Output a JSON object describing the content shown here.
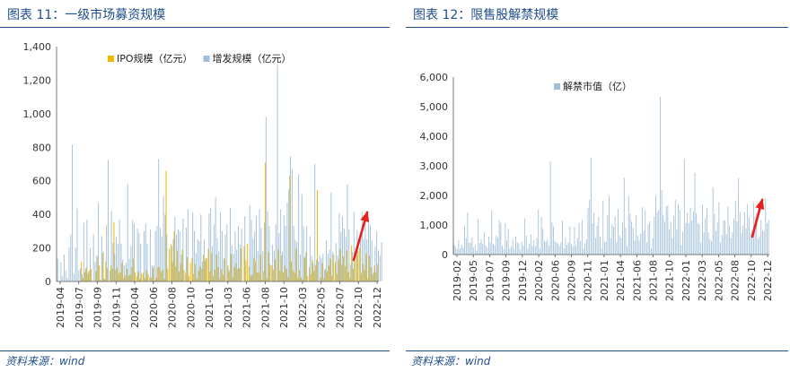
{
  "left": {
    "figure_title": "图表 11：一级市场募资规模",
    "source": "资料来源：wind"
  },
  "right": {
    "figure_title": "图表 12：限售股解禁规模",
    "source": "资料来源：wind"
  },
  "colors": {
    "title": "#1f4e8c",
    "ipo": "#f0b800",
    "additional": "#9fbfd9",
    "unlock": "#9fbfd9",
    "arrow": "#e8201c",
    "axis": "#555555"
  },
  "chart_data": [
    {
      "type": "bar",
      "series": [
        {
          "name": "IPO规模（亿元）",
          "start_week": "2019-04-01",
          "values": [
            0,
            0,
            0,
            0,
            0,
            0,
            0,
            0,
            0,
            0,
            0,
            0,
            0,
            0,
            0,
            120,
            20,
            55,
            85,
            45,
            65,
            75,
            0,
            0,
            60,
            145,
            95,
            5,
            170,
            15,
            120,
            80,
            0,
            95,
            75,
            355,
            70,
            85,
            50,
            55,
            110,
            20,
            35,
            75,
            35,
            40,
            85,
            135,
            55,
            30,
            60,
            15,
            45,
            50,
            20,
            70,
            45,
            25,
            25,
            80,
            5,
            20,
            85,
            85,
            60,
            70,
            15,
            660,
            75,
            195,
            220,
            115,
            300,
            90,
            185,
            60,
            105,
            190,
            70,
            50,
            145,
            35,
            110,
            140,
            45,
            105,
            20,
            65,
            90,
            75,
            160,
            125,
            140,
            195,
            60,
            170,
            35,
            70,
            160,
            85,
            20,
            75,
            40,
            140,
            0,
            95,
            60,
            165,
            25,
            85,
            110,
            75,
            80,
            195,
            0,
            210,
            125,
            225,
            90,
            35,
            40,
            140,
            120,
            55,
            50,
            160,
            10,
            60,
            710,
            20,
            175,
            100,
            95,
            70,
            130,
            5,
            190,
            65,
            155,
            55,
            95,
            75,
            25,
            630,
            120,
            65,
            50,
            195,
            20,
            70,
            25,
            10,
            140,
            175,
            30,
            85,
            45,
            125,
            60,
            95,
            545,
            0,
            25,
            110,
            20,
            75,
            60,
            95,
            135,
            35,
            160,
            115,
            45,
            130,
            195,
            100,
            150,
            90,
            185,
            55,
            20,
            215,
            75,
            125,
            160,
            185,
            200,
            50,
            105,
            70,
            165,
            20,
            155,
            85,
            40,
            95,
            55,
            105
          ]
        },
        {
          "name": "增发规模（亿元）",
          "start_week": "2019-04-01",
          "values": [
            135,
            0,
            115,
            30,
            160,
            65,
            20,
            200,
            280,
            815,
            45,
            200,
            435,
            65,
            80,
            40,
            350,
            75,
            370,
            60,
            200,
            0,
            280,
            115,
            155,
            470,
            10,
            270,
            180,
            15,
            335,
            725,
            65,
            420,
            230,
            165,
            265,
            225,
            370,
            225,
            130,
            95,
            110,
            580,
            135,
            210,
            365,
            345,
            0,
            315,
            290,
            225,
            0,
            300,
            345,
            225,
            0,
            310,
            95,
            95,
            300,
            330,
            730,
            320,
            270,
            510,
            400,
            280,
            0,
            0,
            210,
            250,
            385,
            280,
            310,
            300,
            160,
            375,
            0,
            320,
            430,
            0,
            0,
            410,
            300,
            170,
            250,
            240,
            400,
            120,
            250,
            140,
            0,
            405,
            440,
            210,
            340,
            500,
            260,
            180,
            415,
            300,
            135,
            280,
            340,
            75,
            440,
            215,
            165,
            300,
            190,
            330,
            220,
            315,
            0,
            390,
            0,
            0,
            455,
            370,
            255,
            300,
            390,
            180,
            430,
            320,
            180,
            350,
            980,
            420,
            330,
            0,
            220,
            185,
            340,
            1290,
            290,
            430,
            175,
            395,
            330,
            470,
            550,
            745,
            670,
            330,
            250,
            235,
            640,
            160,
            520,
            330,
            150,
            330,
            0,
            270,
            155,
            105,
            700,
            130,
            120,
            155,
            140,
            165,
            70,
            245,
            165,
            190,
            530,
            175,
            0,
            230,
            155,
            405,
            295,
            390,
            315,
            265,
            580,
            310,
            100,
            175,
            415,
            0,
            305,
            0,
            275,
            415,
            255,
            380,
            250,
            375,
            335,
            245,
            55,
            205,
            300,
            185,
            155,
            235
          ]
        }
      ],
      "x_tick_labels": [
        "2019-04",
        "2019-07",
        "2019-09",
        "2019-11",
        "2020-04",
        "2020-06",
        "2020-08",
        "2020-10",
        "2021-01",
        "2021-03",
        "2021-06",
        "2021-08",
        "2021-10",
        "2022-03",
        "2022-05",
        "2022-07",
        "2022-10",
        "2022-12"
      ],
      "y_tick_labels": [
        "0",
        "200",
        "400",
        "600",
        "800",
        "1,000",
        "1,200",
        "1,400"
      ],
      "ylim": [
        0,
        1400
      ],
      "stacked": false,
      "legend": "top-center",
      "annotation": "red arrow pointing up at the right end"
    },
    {
      "type": "bar",
      "series": [
        {
          "name": "解禁市值（亿）",
          "start_week": "2019-02-04",
          "values": [
            320,
            260,
            180,
            480,
            200,
            330,
            250,
            950,
            560,
            1430,
            400,
            410,
            580,
            230,
            310,
            120,
            1200,
            400,
            520,
            360,
            760,
            310,
            230,
            610,
            410,
            1480,
            360,
            300,
            640,
            580,
            1160,
            1070,
            300,
            180,
            1060,
            500,
            870,
            200,
            280,
            510,
            200,
            620,
            410,
            380,
            160,
            440,
            300,
            1230,
            640,
            210,
            380,
            680,
            300,
            500,
            280,
            560,
            1520,
            200,
            1280,
            870,
            460,
            440,
            510,
            310,
            3150,
            1080,
            950,
            460,
            410,
            380,
            300,
            410,
            1150,
            210,
            560,
            330,
            420,
            960,
            350,
            270,
            930,
            300,
            560,
            1060,
            450,
            1180,
            200,
            390,
            510,
            1580,
            1850,
            3280,
            1050,
            1420,
            560,
            970,
            1280,
            600,
            210,
            1820,
            430,
            440,
            1330,
            2000,
            560,
            1050,
            940,
            1300,
            420,
            1540,
            650,
            560,
            1080,
            2600,
            910,
            280,
            1960,
            1370,
            1110,
            910,
            470,
            1330,
            650,
            460,
            700,
            1600,
            800,
            1490,
            410,
            1030,
            1120,
            200,
            560,
            1280,
            1990,
            1430,
            1510,
            5340,
            2180,
            1350,
            1110,
            1640,
            1650,
            860,
            1120,
            560,
            1300,
            1850,
            850,
            1710,
            1500,
            320,
            780,
            3250,
            1070,
            1410,
            1060,
            1580,
            1150,
            1450,
            2760,
            1400,
            1050,
            1010,
            410,
            1690,
            760,
            1230,
            1580,
            750,
            510,
            460,
            2270,
            1370,
            800,
            1080,
            1770,
            400,
            660,
            1160,
            1150,
            690,
            1620,
            980,
            560,
            760,
            1220,
            1830,
            1120,
            2590,
            1450,
            740,
            990,
            1430,
            900,
            1710,
            1250,
            740,
            830,
            1750,
            1290,
            1410,
            530,
            610,
            1170,
            800,
            780,
            1910,
            1060,
            1170
          ]
        }
      ],
      "x_tick_labels": [
        "2019-02",
        "2019-05",
        "2019-07",
        "2019-09",
        "2019-12",
        "2020-02",
        "2020-06",
        "2020-09",
        "2020-11",
        "2021-01",
        "2021-04",
        "2021-06",
        "2021-08",
        "2021-10",
        "2022-01",
        "2022-03",
        "2022-05",
        "2022-08",
        "2022-10",
        "2022-12"
      ],
      "y_tick_labels": [
        "0",
        "1,000",
        "2,000",
        "3,000",
        "4,000",
        "5,000",
        "6,000"
      ],
      "ylim": [
        0,
        6000
      ],
      "legend": "top-center",
      "annotation": "red arrow pointing up at the right end"
    }
  ]
}
